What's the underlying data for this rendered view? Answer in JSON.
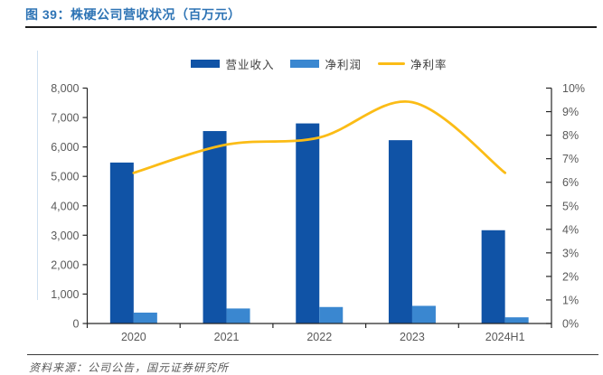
{
  "page": {
    "title": "图 39：株硬公司营收状况（百万元）",
    "source_note": "资料来源：公司公告，国元证券研究所"
  },
  "colors": {
    "title_blue": "#2E74B5",
    "revenue_bar": "#1053A6",
    "profit_bar": "#3A87D0",
    "margin_line": "#FBBC16",
    "axis_line": "#262626",
    "axis_label": "#595959"
  },
  "chart_data": {
    "type": "bar+line combo",
    "categories": [
      "2020",
      "2021",
      "2022",
      "2023",
      "2024H1"
    ],
    "series": [
      {
        "name": "营业收入",
        "type": "bar",
        "axis": "left",
        "values": [
          5470,
          6540,
          6800,
          6230,
          3170
        ]
      },
      {
        "name": "净利润",
        "type": "bar",
        "axis": "left",
        "values": [
          370,
          510,
          560,
          600,
          210
        ]
      },
      {
        "name": "净利率",
        "type": "line",
        "axis": "right",
        "values": [
          6.4,
          7.6,
          7.9,
          9.4,
          6.4
        ]
      }
    ],
    "left_axis": {
      "min": 0,
      "max": 8000,
      "step": 1000
    },
    "right_axis": {
      "min": 0,
      "max": 10,
      "step": 1,
      "suffix": "%"
    },
    "legend_position": "top-center",
    "gridlines": false,
    "unit_note": "百万元"
  }
}
